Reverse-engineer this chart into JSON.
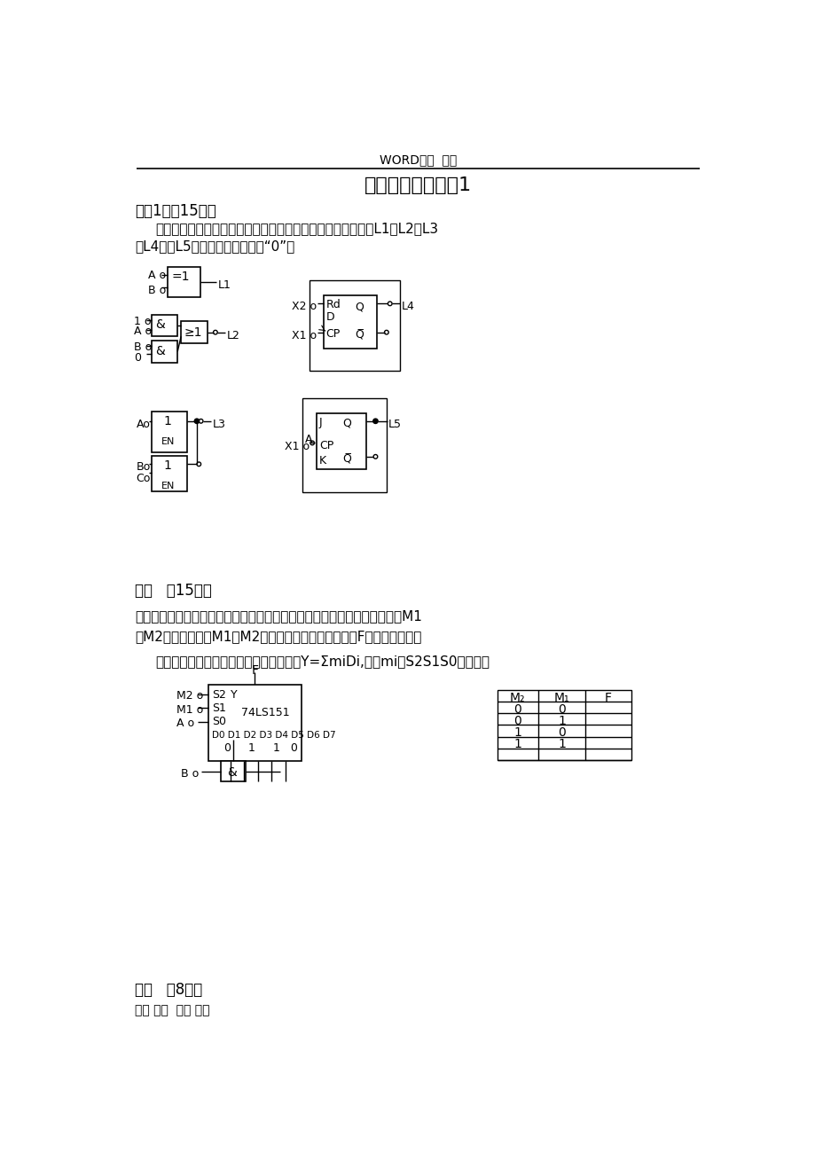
{
  "bg_color": "#ffffff",
  "header_text": "WORD格式  整理",
  "title": "数字电子技术基础1",
  "section1_header": "一．1．（15分）",
  "section1_text1": "试根据图示输入信号波形分别画出各电路相应的输出信号波形L1、L2、L3",
  "section1_text2": "、L4、和L5。设各触发器初态为“0”。",
  "section2_header": "二．   （15分）",
  "section2_text1": "已知由八选一数据选择器组成的逻辑电路如下所示。试按步骤分析该电路在M1",
  "section2_text2": "、M2取不同值时（M1、M2取值情况如下表所示）输出F的逻辑表达式。",
  "section2_text3": "八选一数据选择器输出端逻辑表达式为：Y=ΣmiDi,其中mi是S2S1S0最小项。",
  "section3_header": "三．   （8分）",
  "footer_text": "学习 参考  资料 分享"
}
